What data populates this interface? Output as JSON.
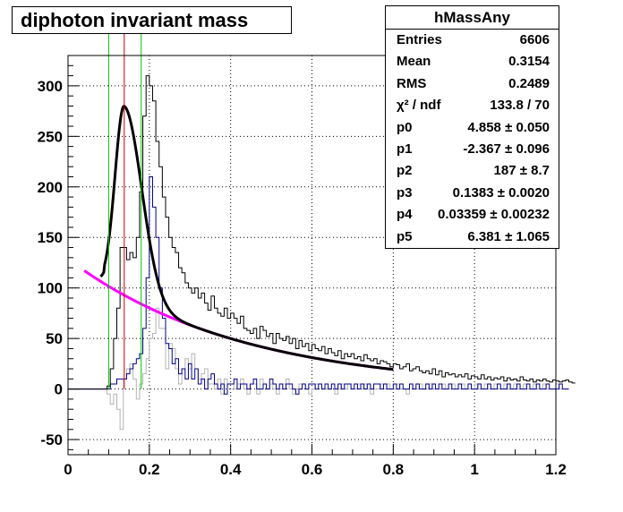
{
  "chart_data": {
    "type": "line",
    "title": "diphoton invariant mass",
    "xlim": [
      0,
      1.2
    ],
    "ylim": [
      -65,
      330
    ],
    "grid": true,
    "x_ticks": [
      "0",
      "0.2",
      "0.4",
      "0.6",
      "0.8",
      "1",
      "1.2"
    ],
    "y_ticks": [
      "-50",
      "0",
      "50",
      "100",
      "150",
      "200",
      "250",
      "300"
    ],
    "x_tick_values": [
      0,
      0.2,
      0.4,
      0.6,
      0.8,
      1.0,
      1.2
    ],
    "y_tick_values": [
      -50,
      0,
      50,
      100,
      150,
      200,
      250,
      300
    ],
    "colors": {
      "data": "#000000",
      "blue_hist": "#00008b",
      "grey_hist": "#b4b4b4",
      "fit": "#000000",
      "background_fit": "#ff00ff",
      "window_lines": "#00c800",
      "peak_line": "#c80000"
    },
    "bin_width": 0.008,
    "x_start": 0.0,
    "series": [
      {
        "values": [
          0,
          0,
          0,
          0,
          0,
          0,
          0,
          0,
          0,
          0,
          0,
          0,
          3,
          20,
          50,
          80,
          140,
          140,
          128,
          135,
          130,
          150,
          195,
          270,
          310,
          300,
          285,
          245,
          220,
          190,
          170,
          150,
          140,
          135,
          120,
          115,
          105,
          100,
          95,
          100,
          90,
          95,
          85,
          78,
          92,
          80,
          75,
          72,
          80,
          70,
          75,
          70,
          65,
          72,
          60,
          58,
          55,
          60,
          50,
          62,
          58,
          52,
          55,
          45,
          55,
          50,
          48,
          52,
          45,
          50,
          40,
          48,
          42,
          45,
          38,
          44,
          40,
          38,
          42,
          35,
          40,
          36,
          33,
          38,
          30,
          35,
          32,
          35,
          30,
          32,
          28,
          34,
          30,
          28,
          30,
          25,
          28,
          27,
          25,
          22,
          25,
          24,
          20,
          22,
          25,
          18,
          20,
          22,
          18,
          16,
          18,
          15,
          20,
          14,
          18,
          12,
          16,
          14,
          15,
          12,
          14,
          12,
          15,
          10,
          13,
          12,
          10,
          14,
          10,
          12,
          9,
          11,
          10,
          12,
          8,
          11,
          9,
          10,
          8,
          12,
          9,
          8,
          10,
          7,
          9,
          8,
          10,
          8,
          7,
          9,
          8,
          7,
          8,
          9,
          7,
          6
        ]
      },
      {
        "values": [
          0,
          0,
          0,
          0,
          0,
          0,
          0,
          0,
          0,
          0,
          0,
          0,
          -5,
          -15,
          -5,
          -20,
          -40,
          10,
          20,
          25,
          10,
          -10,
          5,
          15,
          30,
          50,
          55,
          80,
          60,
          60,
          20,
          45,
          40,
          20,
          5,
          20,
          30,
          20,
          35,
          20,
          10,
          15,
          20,
          5,
          5,
          0,
          10,
          -5,
          10,
          5,
          5,
          0,
          5,
          10,
          0,
          -5,
          5,
          5,
          -5,
          10,
          5,
          0,
          5,
          0,
          -5,
          0,
          5,
          10,
          0,
          -5,
          0,
          5,
          5,
          0,
          -5,
          0,
          5,
          5,
          0,
          0,
          0,
          5,
          -5,
          0,
          5,
          0,
          5,
          0,
          0,
          5,
          0,
          5,
          0,
          -5,
          0,
          0,
          5,
          0,
          5,
          0,
          0,
          5,
          0,
          0,
          -5,
          5,
          0,
          0,
          5,
          0,
          0,
          5,
          0,
          0,
          0,
          5,
          0,
          0,
          5,
          0,
          0,
          5,
          0,
          0,
          0,
          5,
          0,
          0,
          5,
          0,
          0,
          5,
          0,
          0,
          5,
          0,
          0,
          5,
          0,
          0,
          5,
          0,
          0,
          5,
          0,
          0,
          5,
          0,
          0,
          0,
          5,
          0,
          0,
          0
        ]
      },
      {
        "values": [
          0,
          0,
          0,
          0,
          0,
          0,
          0,
          0,
          0,
          0,
          0,
          0,
          0,
          5,
          5,
          10,
          10,
          10,
          15,
          20,
          25,
          30,
          35,
          60,
          110,
          210,
          180,
          150,
          100,
          70,
          45,
          40,
          25,
          30,
          15,
          20,
          10,
          25,
          10,
          20,
          5,
          10,
          0,
          10,
          15,
          5,
          0,
          5,
          -5,
          5,
          5,
          10,
          0,
          5,
          5,
          0,
          5,
          10,
          0,
          0,
          5,
          0,
          10,
          5,
          0,
          5,
          0,
          5,
          5,
          0,
          -5,
          0,
          5,
          0,
          5,
          5,
          0,
          5,
          0,
          5,
          0,
          5,
          0,
          5,
          0,
          5,
          5,
          0,
          5,
          0,
          5,
          0,
          5,
          0,
          5,
          5,
          0,
          5,
          0,
          0,
          5,
          0,
          5,
          0,
          0,
          5,
          0,
          5,
          0,
          0,
          5,
          0,
          5,
          0,
          5,
          0,
          0,
          5,
          0,
          0,
          5,
          0,
          0,
          5,
          0,
          0,
          5,
          0,
          0,
          5,
          0,
          0,
          5,
          0,
          0,
          5,
          0,
          0,
          5,
          0,
          0,
          5,
          0,
          0,
          5,
          0,
          0,
          5,
          0,
          0,
          0,
          5,
          0,
          0
        ]
      }
    ],
    "fit_range": [
      0.08,
      0.8
    ],
    "bkg_range": [
      0.04,
      0.8
    ],
    "window_lines_x": [
      0.1,
      0.18
    ],
    "peak_line_x": 0.1383
  },
  "stats": {
    "name": "hMassAny",
    "rows": [
      {
        "k": "Entries",
        "v": "6606"
      },
      {
        "k": "Mean",
        "v": "0.3154"
      },
      {
        "k": "RMS",
        "v": "0.2489"
      },
      {
        "k": "χ² / ndf",
        "v": "133.8 / 70"
      },
      {
        "k": "p0",
        "v": "4.858 ± 0.050"
      },
      {
        "k": "p1",
        "v": "-2.367 ± 0.096"
      },
      {
        "k": "p2",
        "v": "187 ± 8.7"
      },
      {
        "k": "p3",
        "v": "0.1383 ± 0.0020"
      },
      {
        "k": "p4",
        "v": "0.03359 ± 0.00232"
      },
      {
        "k": "p5",
        "v": "6.381 ± 1.065"
      }
    ]
  }
}
